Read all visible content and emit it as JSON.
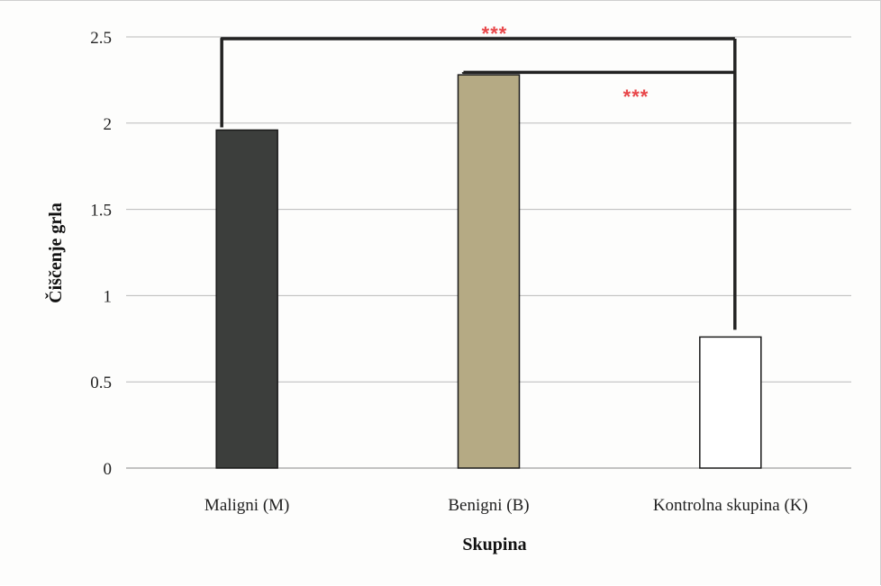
{
  "chart_data": {
    "type": "bar",
    "categories": [
      "Maligni (M)",
      "Benigni (B)",
      "Kontrolna skupina (K)"
    ],
    "values": [
      1.96,
      2.28,
      0.76
    ],
    "bar_colors": [
      "#3c3e3c",
      "#b5aa84",
      "#ffffff"
    ],
    "ytick_labels": [
      "0",
      "0.5",
      "1",
      "1.5",
      "2",
      "2.5"
    ],
    "ylim": [
      0,
      2.5
    ],
    "xlabel": "Skupina",
    "ylabel": "Čiščenje grla",
    "grid": "horizontal",
    "significance": [
      {
        "from": "Maligni (M)",
        "to": "Kontrolna skupina (K)",
        "label": "***"
      },
      {
        "from": "Benigni (B)",
        "to": "Kontrolna skupina (K)",
        "label": "***"
      }
    ]
  },
  "colors": {
    "significance": "#e8474a",
    "bracket": "#222222",
    "grid": "#b9b9b9"
  }
}
